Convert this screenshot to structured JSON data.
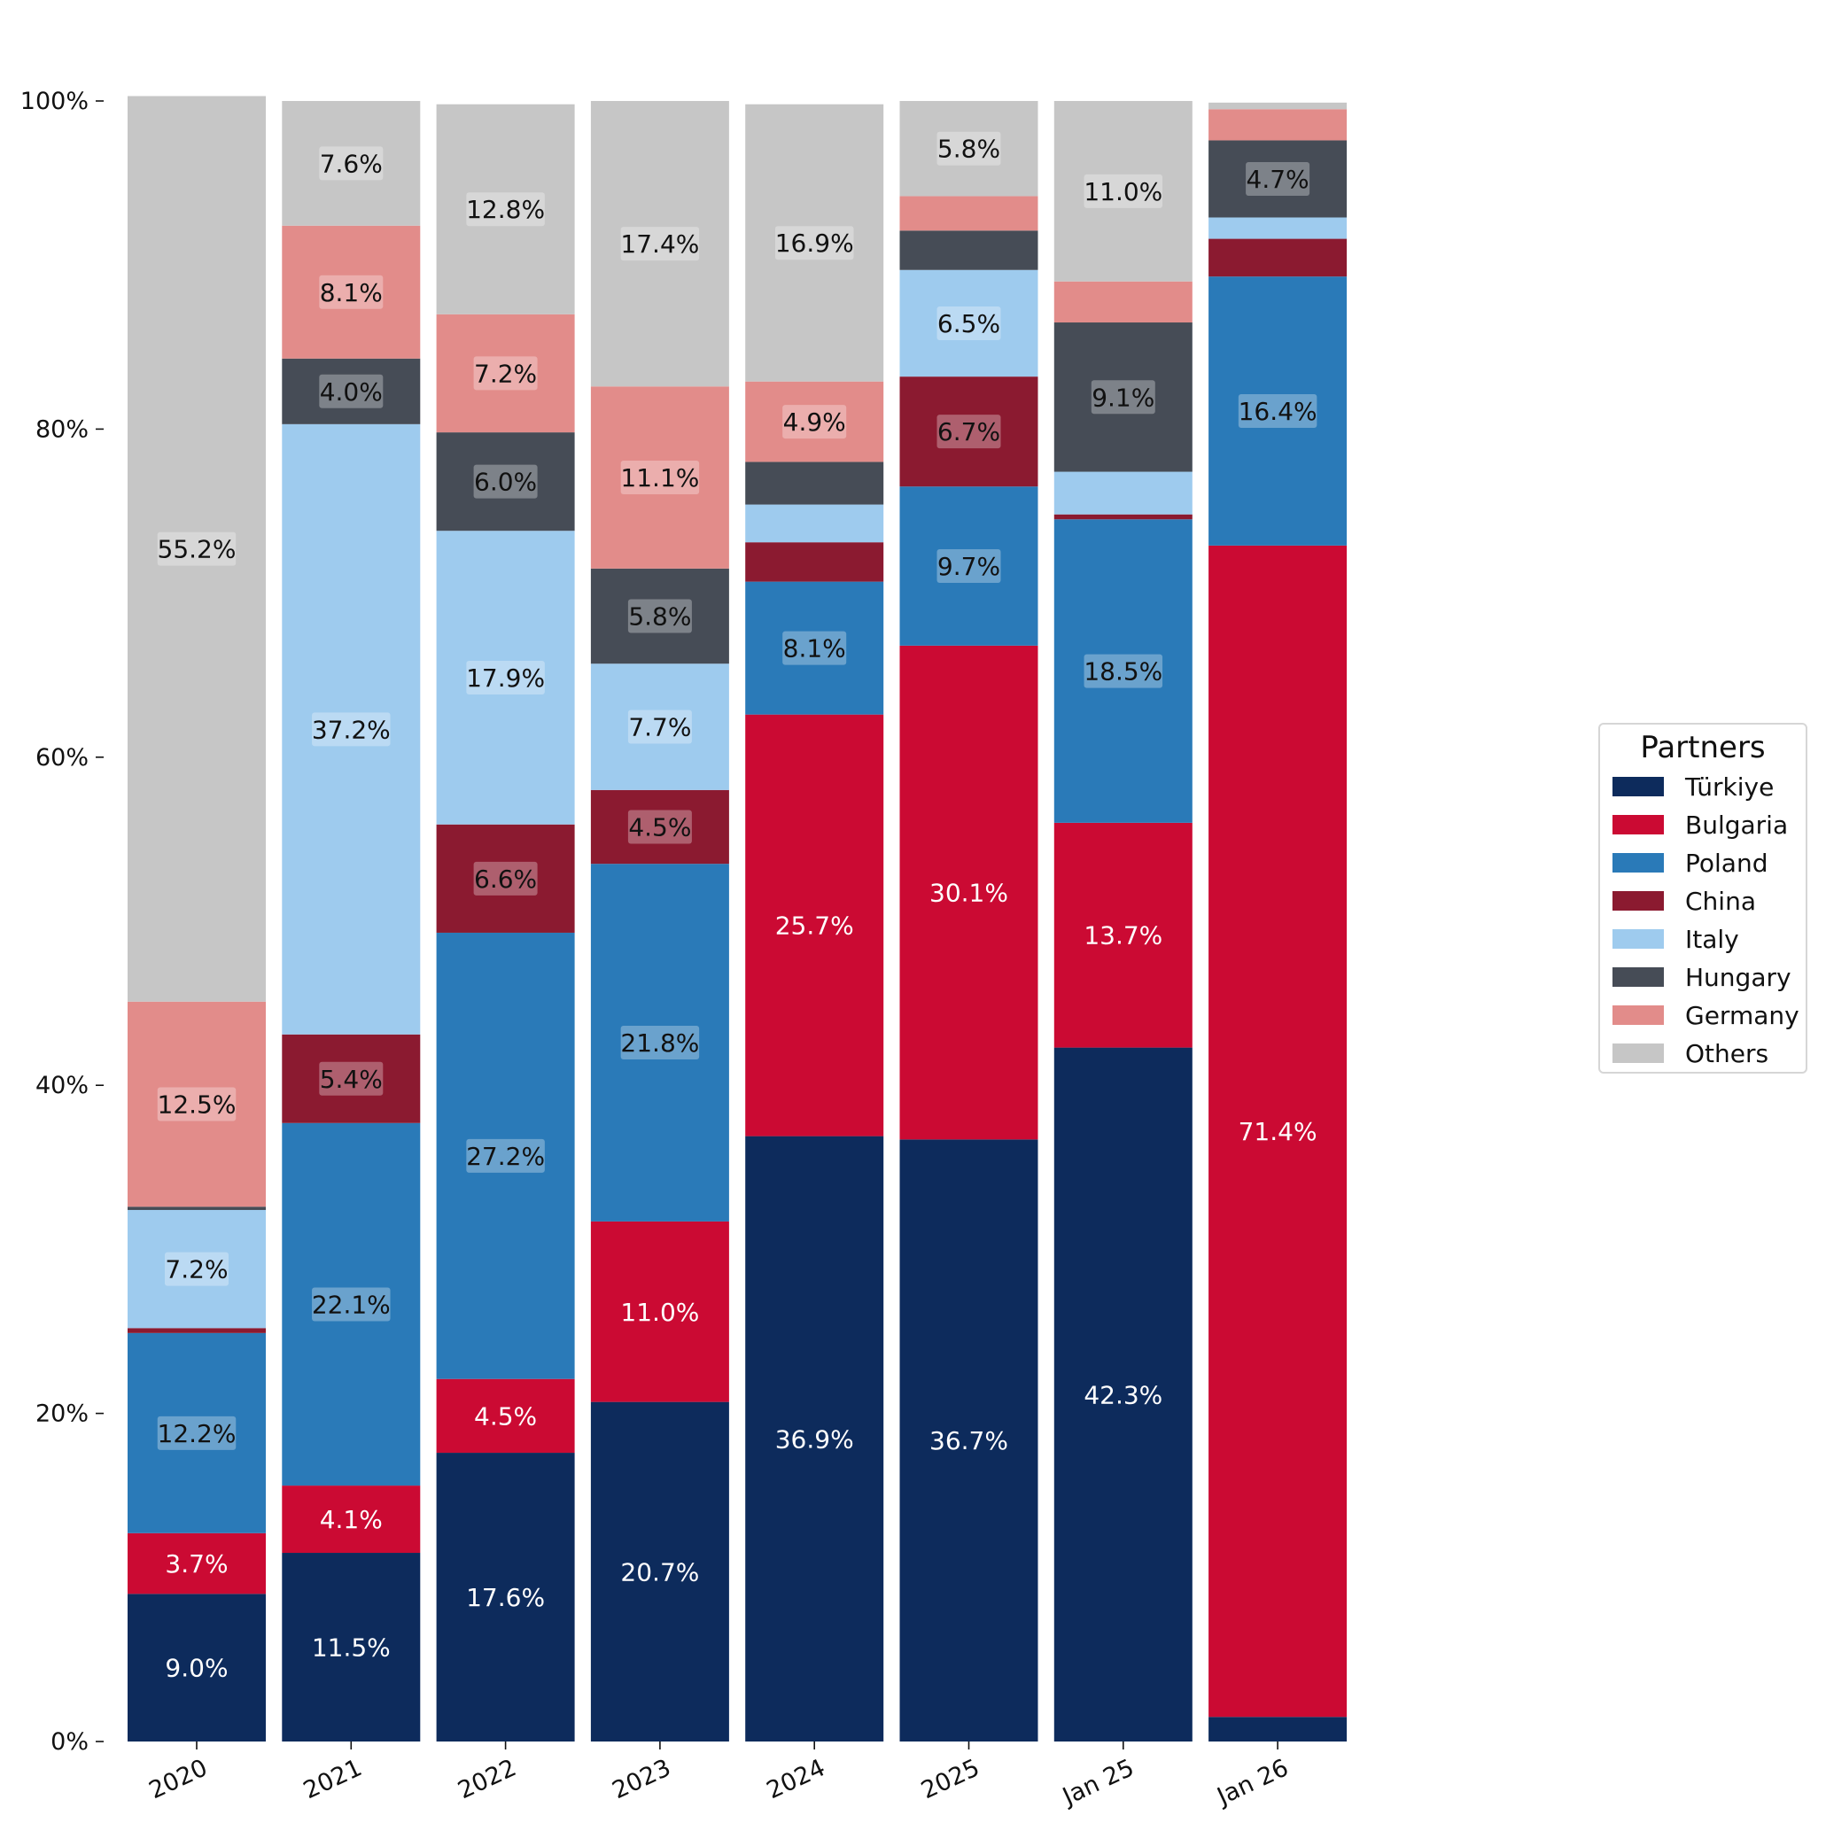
{
  "chart_data": {
    "type": "bar",
    "stacked": true,
    "categories": [
      "2020",
      "2021",
      "2022",
      "2023",
      "2024",
      "2025",
      "Jan 25",
      "Jan 26"
    ],
    "ylim": [
      0,
      100
    ],
    "yticks": [
      "0%",
      "20%",
      "40%",
      "60%",
      "80%",
      "100%"
    ],
    "grid": false,
    "legend": {
      "title": "Partners",
      "position": "right"
    },
    "series": [
      {
        "name": "Türkiye",
        "color": "#0d2b5c",
        "label_color": "#ffffff",
        "boxed": false,
        "values": [
          9.0,
          11.5,
          17.6,
          20.7,
          36.9,
          36.7,
          42.3,
          1.5
        ],
        "labels": [
          "9.0%",
          "11.5%",
          "17.6%",
          "20.7%",
          "36.9%",
          "36.7%",
          "42.3%",
          ""
        ]
      },
      {
        "name": "Bulgaria",
        "color": "#cb0a33",
        "label_color": "#ffffff",
        "boxed": false,
        "values": [
          3.7,
          4.1,
          4.5,
          11.0,
          25.7,
          30.1,
          13.7,
          71.4
        ],
        "labels": [
          "3.7%",
          "4.1%",
          "4.5%",
          "11.0%",
          "25.7%",
          "30.1%",
          "13.7%",
          "71.4%"
        ]
      },
      {
        "name": "Poland",
        "color": "#2a7ab8",
        "label_color": "#111111",
        "boxed": true,
        "values": [
          12.2,
          22.1,
          27.2,
          21.8,
          8.1,
          9.7,
          18.5,
          16.4
        ],
        "labels": [
          "12.2%",
          "22.1%",
          "27.2%",
          "21.8%",
          "8.1%",
          "9.7%",
          "18.5%",
          "16.4%"
        ]
      },
      {
        "name": "China",
        "color": "#8b1a30",
        "label_color": "#111111",
        "boxed": true,
        "values": [
          0.3,
          5.4,
          6.6,
          4.5,
          2.4,
          6.7,
          0.3,
          2.3
        ],
        "labels": [
          "",
          "5.4%",
          "6.6%",
          "4.5%",
          "",
          "6.7%",
          "",
          ""
        ]
      },
      {
        "name": "Italy",
        "color": "#9ecbee",
        "label_color": "#111111",
        "boxed": true,
        "values": [
          7.2,
          37.2,
          17.9,
          7.7,
          2.3,
          6.5,
          2.6,
          1.3
        ],
        "labels": [
          "7.2%",
          "37.2%",
          "17.9%",
          "7.7%",
          "",
          "6.5%",
          "",
          ""
        ]
      },
      {
        "name": "Hungary",
        "color": "#464c56",
        "label_color": "#111111",
        "boxed": true,
        "values": [
          0.2,
          4.0,
          6.0,
          5.8,
          2.6,
          2.4,
          9.1,
          4.7
        ],
        "labels": [
          "",
          "4.0%",
          "6.0%",
          "5.8%",
          "",
          "",
          "9.1%",
          "4.7%"
        ]
      },
      {
        "name": "Germany",
        "color": "#e28c8a",
        "label_color": "#111111",
        "boxed": true,
        "values": [
          12.5,
          8.1,
          7.2,
          11.1,
          4.9,
          2.1,
          2.5,
          1.9
        ],
        "labels": [
          "12.5%",
          "8.1%",
          "7.2%",
          "11.1%",
          "4.9%",
          "",
          "",
          ""
        ]
      },
      {
        "name": "Others",
        "color": "#c6c6c6",
        "label_color": "#111111",
        "boxed": true,
        "values": [
          55.2,
          7.6,
          12.8,
          17.4,
          16.9,
          5.8,
          11.0,
          0.4
        ],
        "labels": [
          "55.2%",
          "7.6%",
          "12.8%",
          "17.4%",
          "16.9%",
          "5.8%",
          "11.0%",
          ""
        ]
      }
    ]
  }
}
